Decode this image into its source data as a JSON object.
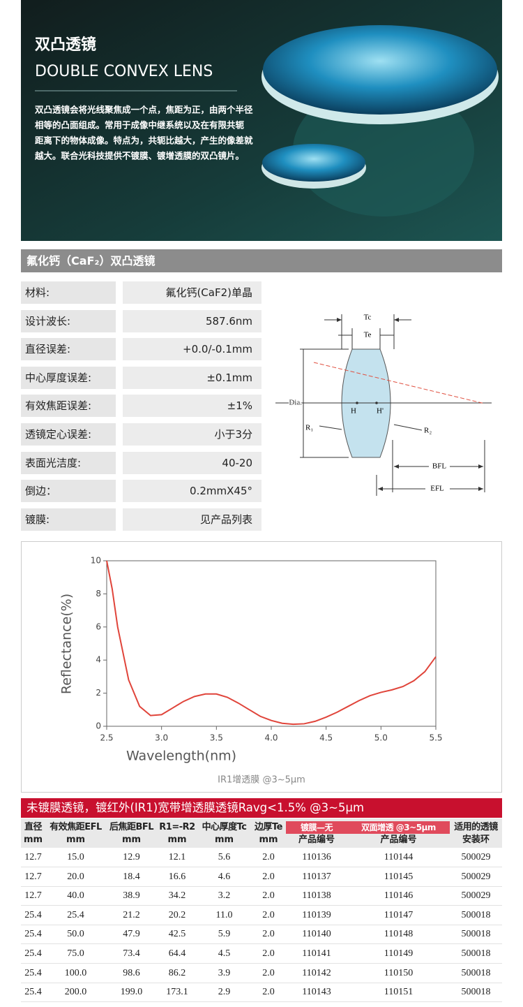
{
  "header": {
    "title": "双凸透镜",
    "subtitle": "DOUBLE CONVEX LENS",
    "description": [
      "双凸透镜会将光线聚焦成一个点，焦距为正，由两个半径",
      "相等的凸面组成。常用于成像中继系统以及在有限共轭",
      "距离下的物体成像。特点为，共轭比越大，产生的像差就",
      "越大。联合光科技提供不镀膜、镀增透膜的双凸镜片。"
    ]
  },
  "spec": {
    "title": "氟化钙（CaF₂）双凸透镜",
    "rows": [
      [
        "材料:",
        "氟化钙(CaF2)单晶"
      ],
      [
        "设计波长:",
        "587.6nm"
      ],
      [
        "直径误差:",
        "+0.0/-0.1mm"
      ],
      [
        "中心厚度误差:",
        "±0.1mm"
      ],
      [
        "有效焦距误差:",
        "±1%"
      ],
      [
        "透镜定心误差:",
        "小于3分"
      ],
      [
        "表面光洁度:",
        "40-20"
      ],
      [
        "倒边：",
        "0.2mmX45°"
      ],
      [
        "镀膜:",
        "见产品列表"
      ]
    ]
  },
  "diagram": {
    "tc": "Tc",
    "te": "Te",
    "dia": "Dia.",
    "h": "H",
    "h_prime": "H'",
    "r1": "R₁",
    "r2": "R₂",
    "bfl": "BFL",
    "efl": "EFL"
  },
  "chart_data": {
    "type": "line",
    "x_label": "Wavelength(nm)",
    "y_label": "Reflectance(%)",
    "caption": "IR1增透膜 @3~5µm",
    "color": "#e0443a",
    "x": [
      2.5,
      2.55,
      2.6,
      2.7,
      2.8,
      2.9,
      3.0,
      3.1,
      3.2,
      3.3,
      3.4,
      3.5,
      3.6,
      3.7,
      3.8,
      3.9,
      4.0,
      4.1,
      4.2,
      4.3,
      4.4,
      4.5,
      4.6,
      4.7,
      4.8,
      4.9,
      5.0,
      5.1,
      5.2,
      5.3,
      5.4,
      5.5
    ],
    "values": [
      10,
      8.3,
      6.0,
      2.8,
      1.2,
      0.65,
      0.7,
      1.1,
      1.5,
      1.8,
      1.95,
      1.95,
      1.75,
      1.4,
      1.0,
      0.6,
      0.35,
      0.18,
      0.12,
      0.15,
      0.3,
      0.55,
      0.85,
      1.2,
      1.55,
      1.85,
      2.05,
      2.2,
      2.4,
      2.75,
      3.3,
      4.2
    ],
    "xlim": [
      2.5,
      5.5
    ],
    "ylim": [
      0,
      10
    ],
    "xticks": [
      2.5,
      {
        "value": 3,
        "label": "3.0"
      },
      3.5,
      {
        "value": 4,
        "label": "4.0"
      },
      4.5,
      {
        "value": 5,
        "label": "5.0"
      },
      5.5
    ],
    "yticks": [
      0,
      2,
      4,
      6,
      8,
      10
    ]
  },
  "table": {
    "title": "未镀膜透镜，镀红外(IR1)宽带增透膜透镜Ravg<1.5% @3~5µm",
    "columns": [
      [
        "直径",
        "mm"
      ],
      [
        "有效焦距EFL",
        "mm"
      ],
      [
        "后焦距BFL",
        "mm"
      ],
      [
        "R1=-R2",
        "mm"
      ],
      [
        "中心厚度Tc",
        "mm"
      ],
      [
        "边厚Te",
        "mm"
      ],
      [
        "镀膜—无",
        "产品编号"
      ],
      [
        "双面增透 @3~5µm",
        "产品编号"
      ],
      [
        "适用的透镜",
        "安装环"
      ]
    ],
    "rows": [
      [
        "12.7",
        "15.0",
        "12.9",
        "12.1",
        "5.6",
        "2.0",
        "110136",
        "110144",
        "500029"
      ],
      [
        "12.7",
        "20.0",
        "18.4",
        "16.6",
        "4.6",
        "2.0",
        "110137",
        "110145",
        "500029"
      ],
      [
        "12.7",
        "40.0",
        "38.9",
        "34.2",
        "3.2",
        "2.0",
        "110138",
        "110146",
        "500029"
      ],
      [
        "25.4",
        "25.4",
        "21.2",
        "20.2",
        "11.0",
        "2.0",
        "110139",
        "110147",
        "500018"
      ],
      [
        "25.4",
        "50.0",
        "47.9",
        "42.5",
        "5.9",
        "2.0",
        "110140",
        "110148",
        "500018"
      ],
      [
        "25.4",
        "75.0",
        "73.4",
        "64.4",
        "4.5",
        "2.0",
        "110141",
        "110149",
        "500018"
      ],
      [
        "25.4",
        "100.0",
        "98.6",
        "86.2",
        "3.9",
        "2.0",
        "110142",
        "110150",
        "500018"
      ],
      [
        "25.4",
        "200.0",
        "199.0",
        "173.1",
        "2.9",
        "2.0",
        "110143",
        "110151",
        "500018"
      ]
    ]
  }
}
